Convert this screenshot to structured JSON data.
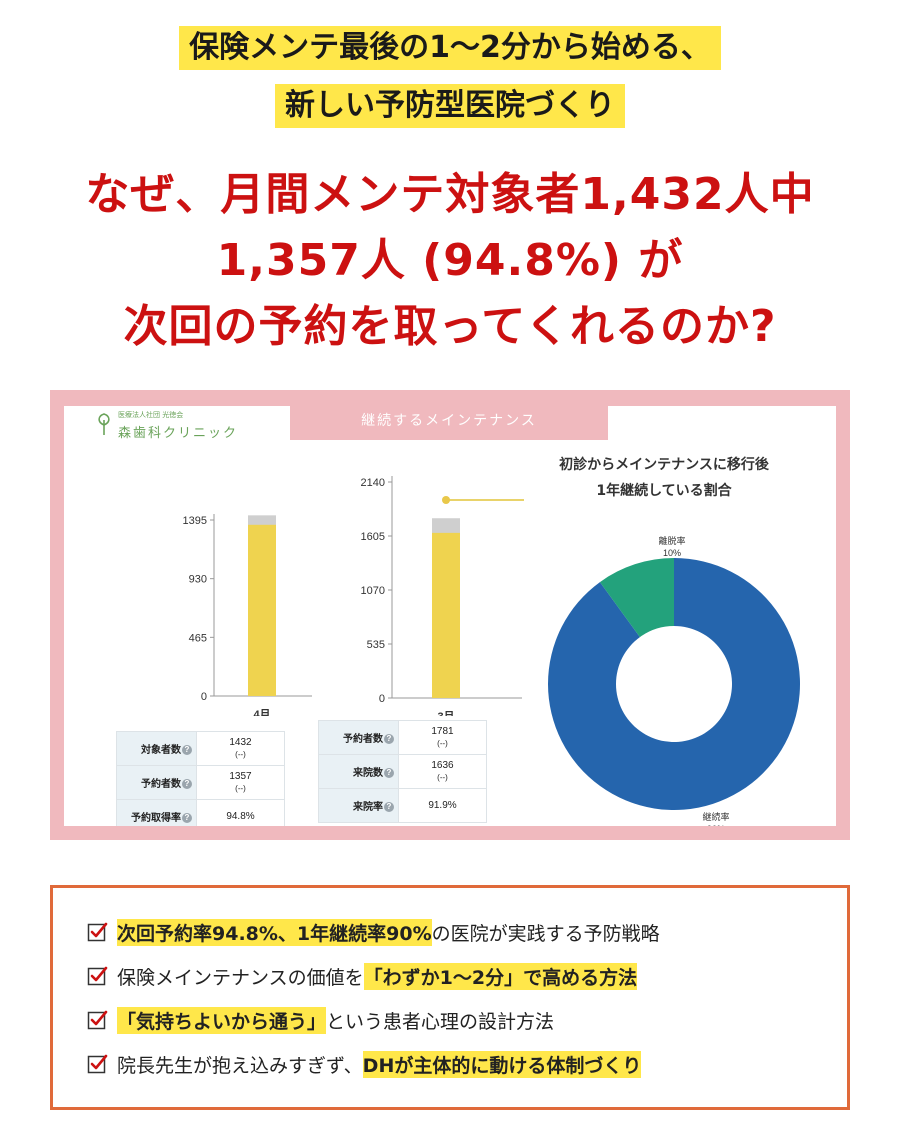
{
  "header": {
    "subtitle_line1": "保険メンテ最後の1〜2分から始める、",
    "subtitle_line2": "新しい予防型医院づくり",
    "headline_line1": "なぜ、月間メンテ対象者1,432人中",
    "headline_line2": "1,357人 (94.8%) が",
    "headline_line3": "次回の予約を取ってくれるのか?"
  },
  "dashboard": {
    "tab_title": "継続するメインテナンス",
    "clinic_corp": "医療法人社団 光徳会",
    "clinic_name": "森歯科クリニック",
    "chart_april": {
      "category": "4月",
      "ticks": [
        "1395",
        "930",
        "465",
        "0"
      ],
      "table": [
        {
          "label": "対象者数",
          "value": "1432",
          "sub": "(--)"
        },
        {
          "label": "予約者数",
          "value": "1357",
          "sub": "(--)"
        },
        {
          "label": "予約取得率",
          "value": "94.8%",
          "sub": ""
        }
      ]
    },
    "chart_march": {
      "category": "3月",
      "ticks": [
        "2140",
        "1605",
        "1070",
        "535",
        "0"
      ],
      "table": [
        {
          "label": "予約者数",
          "value": "1781",
          "sub": "(--)"
        },
        {
          "label": "来院数",
          "value": "1636",
          "sub": "(--)"
        },
        {
          "label": "来院率",
          "value": "91.9%",
          "sub": ""
        }
      ]
    },
    "pie": {
      "title_line1": "初診からメインテナンスに移行後",
      "title_line2": "1年継続している割合",
      "retain_label": "継続率",
      "retain_value": "90%",
      "churn_label": "離脱率",
      "churn_value": "10%"
    },
    "help_glyph": "?"
  },
  "chart_data": [
    {
      "type": "bar",
      "categories": [
        "4月"
      ],
      "ylim": [
        0,
        1395
      ],
      "yticks": [
        0,
        465,
        930,
        1395
      ],
      "series": [
        {
          "name": "予約者数",
          "values": [
            1357
          ]
        },
        {
          "name": "対象者数",
          "values": [
            1432
          ]
        }
      ],
      "colors": {
        "main": "#efd34f",
        "total": "#cfcfcf"
      }
    },
    {
      "type": "bar",
      "categories": [
        "3月"
      ],
      "ylim": [
        0,
        2140
      ],
      "yticks": [
        0,
        535,
        1070,
        1605,
        2140
      ],
      "series": [
        {
          "name": "来院数",
          "values": [
            1636
          ]
        },
        {
          "name": "予約者数",
          "values": [
            1781
          ]
        }
      ],
      "colors": {
        "main": "#efd34f",
        "total": "#cfcfcf"
      }
    },
    {
      "type": "pie",
      "categories": [
        "継続率",
        "離脱率"
      ],
      "values": [
        90,
        10
      ],
      "colors": {
        "継続率": "#2565ad",
        "離脱率": "#23a27c"
      }
    }
  ],
  "features": [
    {
      "parts": [
        {
          "t": "次回予約率94.8%、1年継続率90%",
          "hl": true
        },
        {
          "t": "の医院が実践する予防戦略",
          "hl": false
        }
      ]
    },
    {
      "parts": [
        {
          "t": "保険メインテナンスの価値を",
          "hl": false
        },
        {
          "t": "「わずか1〜2分」で高める方法",
          "hl": true
        }
      ]
    },
    {
      "parts": [
        {
          "t": "「気持ちよいから通う」",
          "hl": true
        },
        {
          "t": "という患者心理の設計方法",
          "hl": false
        }
      ]
    },
    {
      "parts": [
        {
          "t": "院長先生が抱え込みすぎず、",
          "hl": false
        },
        {
          "t": "DHが主体的に動ける体制づくり",
          "hl": true
        }
      ]
    }
  ],
  "colors": {
    "accent_red": "#cc1111",
    "highlight": "#ffe74a",
    "panel_pink": "#f0b9be",
    "frame_orange": "#e06a3a"
  }
}
